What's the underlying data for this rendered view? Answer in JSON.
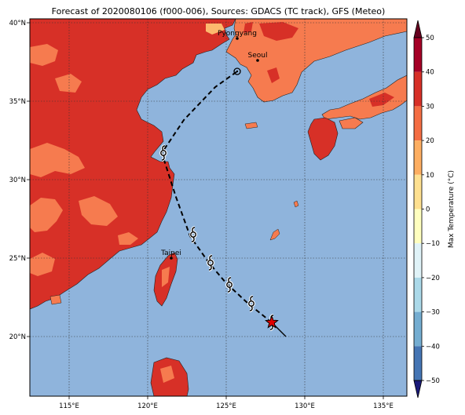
{
  "title": "Forecast of 2020080106 (f000-006), Sources: GDACS (TC track), GFS (Meteo)",
  "map": {
    "lon_ticks": [
      "115°E",
      "120°E",
      "125°E",
      "130°E",
      "135°E"
    ],
    "lat_ticks": [
      "40°N",
      "35°N",
      "30°N",
      "25°N",
      "20°N"
    ],
    "cities": [
      {
        "name": "Pyongyang",
        "lon": 125.7,
        "lat": 39.0
      },
      {
        "name": "Seoul",
        "lon": 127.0,
        "lat": 37.6
      },
      {
        "name": "Taipei",
        "lon": 121.5,
        "lat": 25.0
      }
    ],
    "track_lonlat": [
      [
        128.8,
        20.0
      ],
      [
        127.9,
        20.9
      ],
      [
        126.4,
        22.1
      ],
      [
        125.0,
        23.4
      ],
      [
        123.9,
        24.7
      ],
      [
        122.7,
        26.4
      ],
      [
        121.8,
        28.9
      ],
      [
        120.9,
        31.7
      ],
      [
        122.3,
        33.8
      ],
      [
        124.3,
        35.9
      ],
      [
        125.7,
        36.9
      ]
    ],
    "storm_symbol_positions": [
      [
        127.9,
        20.9
      ],
      [
        126.6,
        22.1
      ],
      [
        125.2,
        23.3
      ],
      [
        124.0,
        24.7
      ],
      [
        122.9,
        26.5
      ],
      [
        121.0,
        31.7
      ]
    ],
    "current_position": [
      127.9,
      20.9
    ],
    "ocean_color": "#8fb4dc",
    "land_colors": {
      "c20_30": "#f67b4f",
      "c30_40": "#d73027",
      "c10_20": "#fdb96e"
    }
  },
  "colorbar": {
    "label": "Max Temperature (°C)",
    "ticks": [
      "50",
      "40",
      "30",
      "20",
      "10",
      "0",
      "−10",
      "−20",
      "−30",
      "−40",
      "−50"
    ],
    "colors": [
      "#67001f",
      "#a50026",
      "#d73027",
      "#f46d43",
      "#fdae61",
      "#fee090",
      "#ffffbf",
      "#e0f3f8",
      "#abd9e9",
      "#74add1",
      "#4575b4",
      "#313695",
      "#1a1a7a"
    ]
  }
}
